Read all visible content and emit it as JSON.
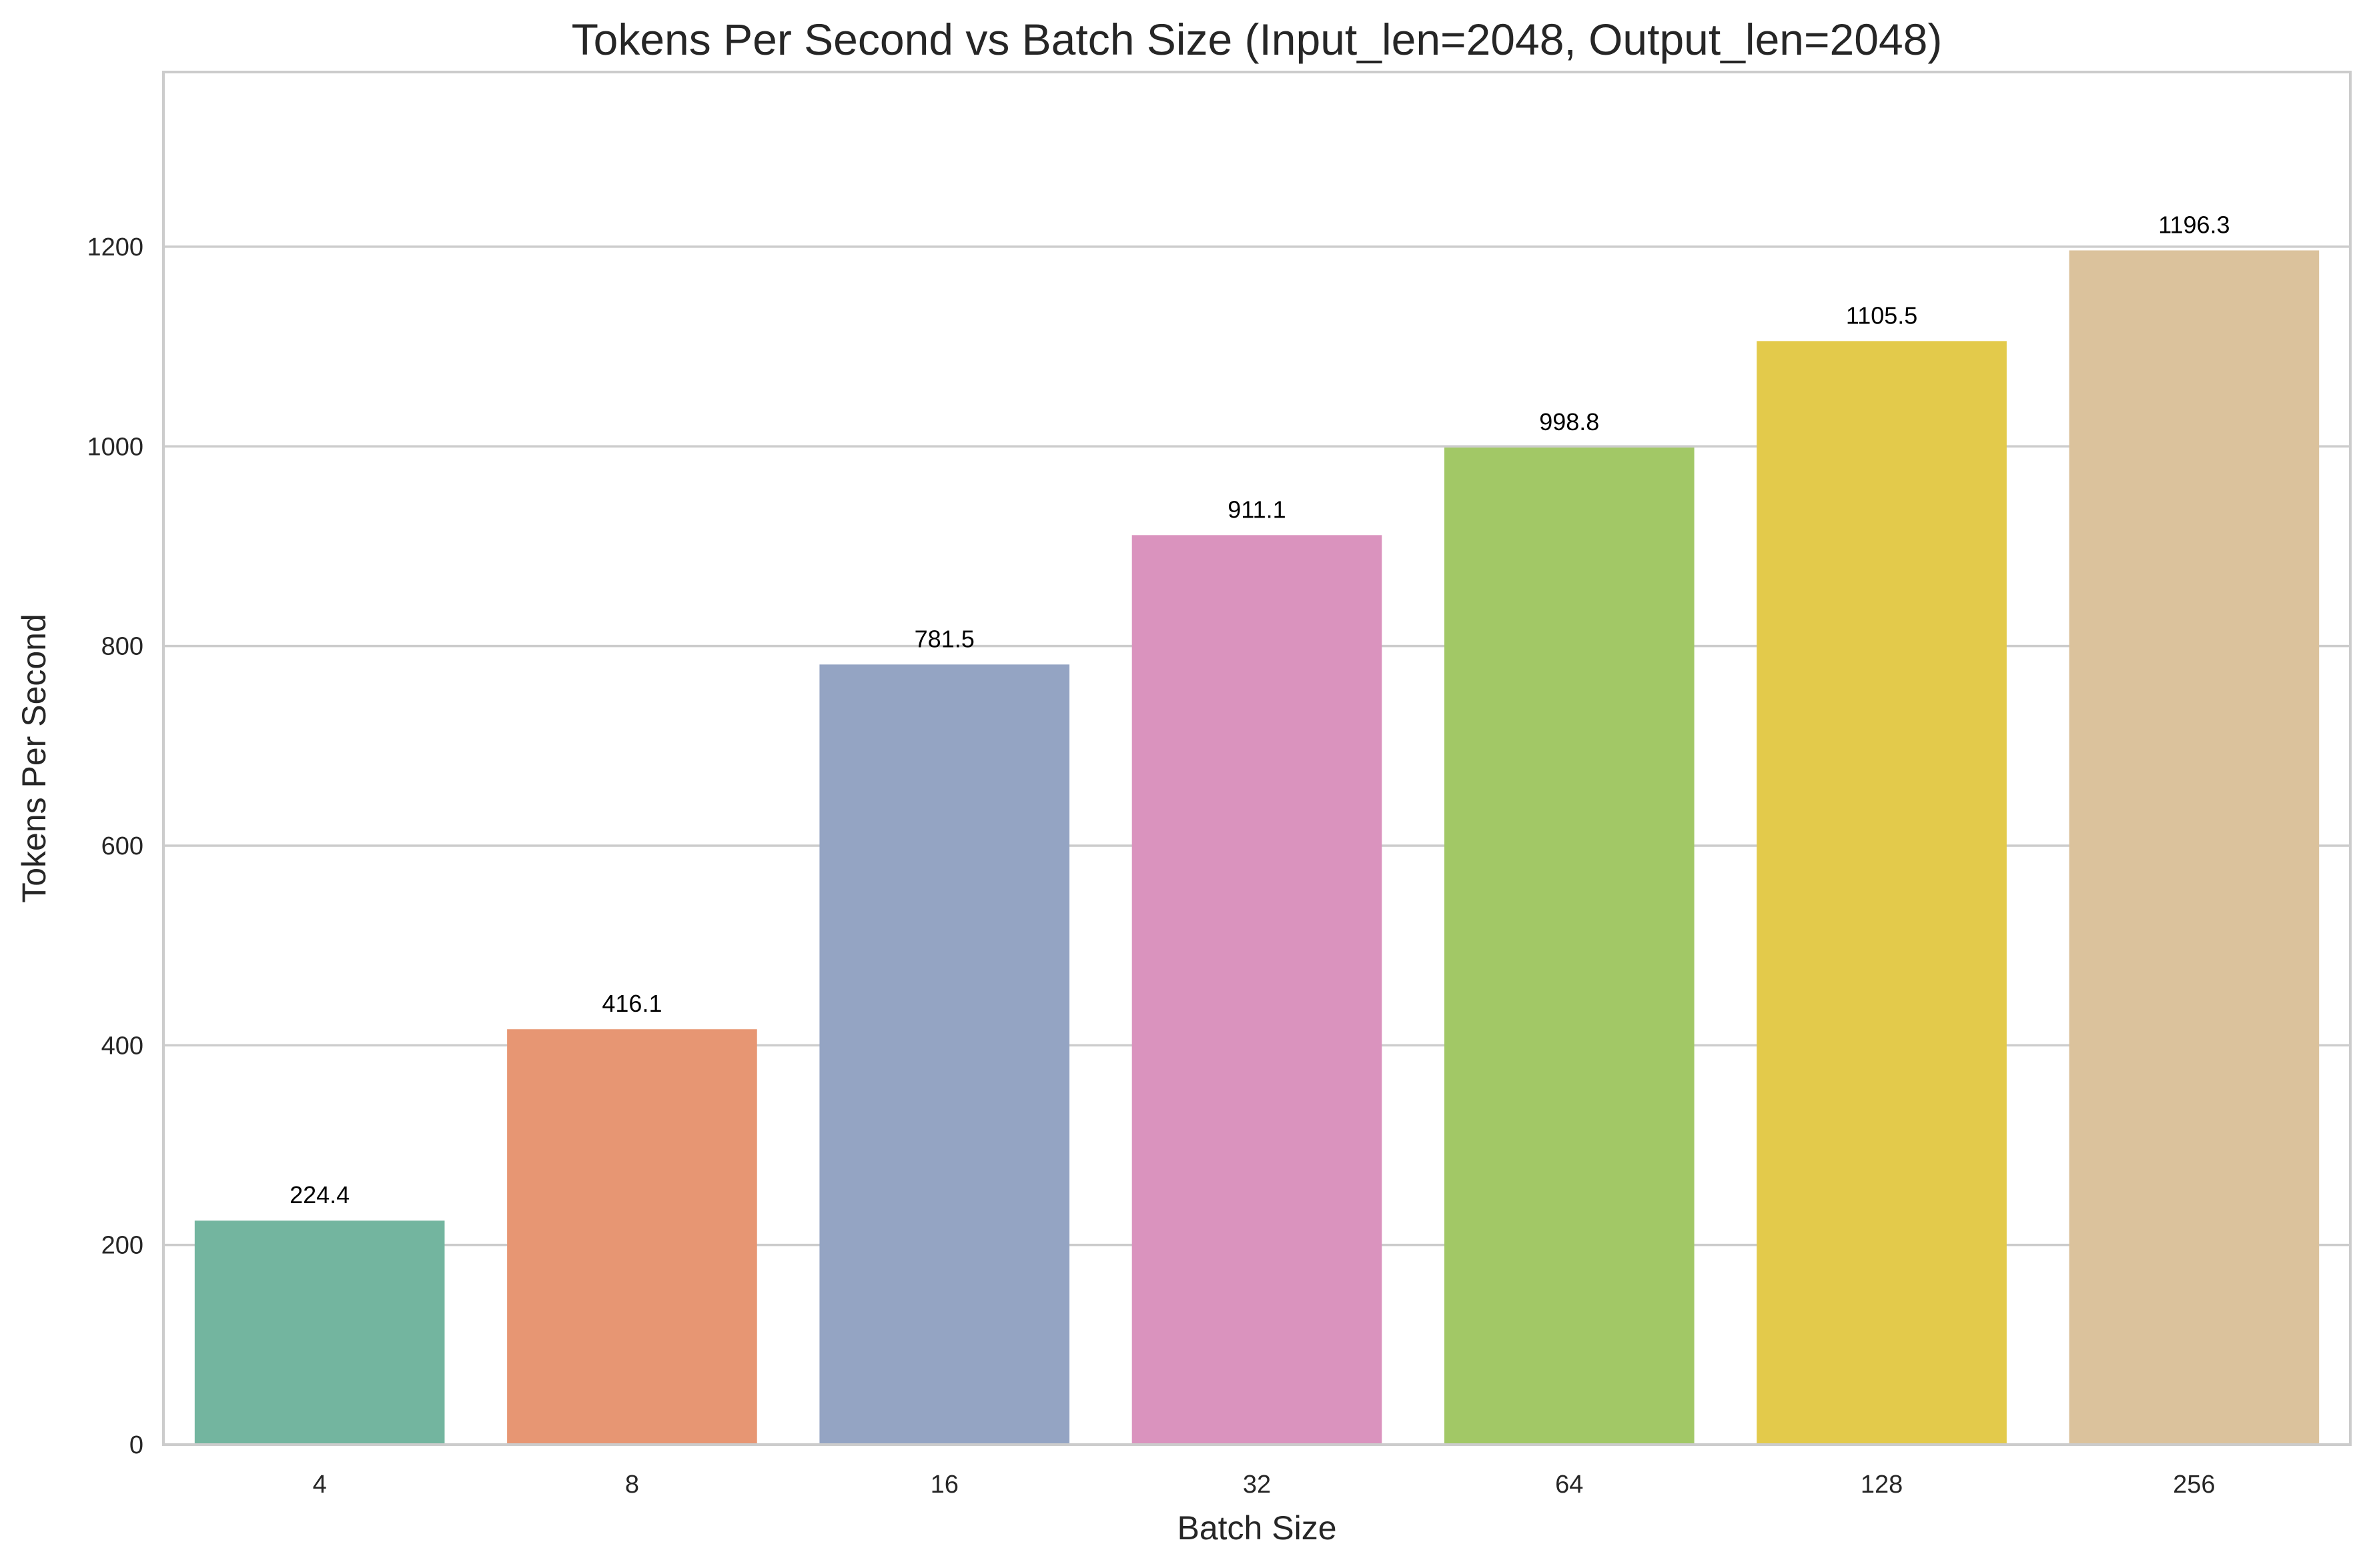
{
  "chart_data": {
    "type": "bar",
    "title": "Tokens Per Second vs Batch Size (Input_len=2048, Output_len=2048)",
    "xlabel": "Batch Size",
    "ylabel": "Tokens Per Second",
    "categories": [
      "4",
      "8",
      "16",
      "32",
      "64",
      "128",
      "256"
    ],
    "values": [
      224.4,
      416.1,
      781.5,
      911.1,
      998.8,
      1105.5,
      1196.3
    ],
    "value_labels": [
      "224.4",
      "416.1",
      "781.5",
      "911.1",
      "998.8",
      "1105.5",
      "1196.3"
    ],
    "colors": [
      "#73b59f",
      "#e79673",
      "#94a4c3",
      "#da93be",
      "#a2c866",
      "#e3ca4b",
      "#dbc29c"
    ],
    "yticks": [
      0,
      200,
      400,
      600,
      800,
      1000,
      1200
    ],
    "ylim": [
      0,
      1375
    ],
    "grid": true,
    "grid_axis": "y",
    "legend": "none"
  }
}
